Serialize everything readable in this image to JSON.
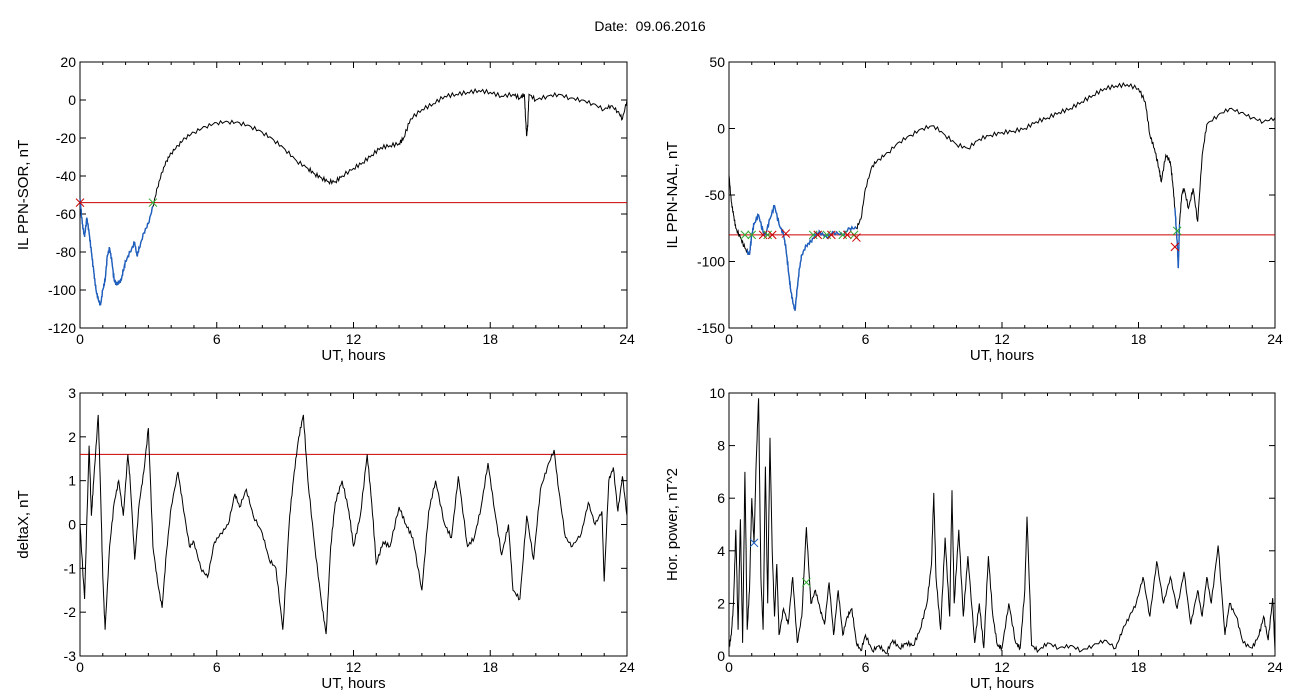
{
  "title": "Date:  09.06.2016",
  "chart_data": [
    {
      "id": "tl",
      "type": "line",
      "title": "",
      "xlabel": "UT, hours",
      "ylabel": "IL PPN-SOR, nT",
      "xlim": [
        0,
        24
      ],
      "ylim": [
        -120,
        20
      ],
      "xticks": [
        0,
        6,
        12,
        18,
        24
      ],
      "yticks": [
        -120,
        -100,
        -80,
        -60,
        -40,
        -20,
        0,
        20
      ],
      "threshold": -54,
      "threshold_color": "#cc0000",
      "line_color": "#000000",
      "highlight_color": "#1f5fbf",
      "highlight_range": [
        0,
        3.2
      ],
      "markers": [
        {
          "x": 0.0,
          "y": -54,
          "symbol": "x",
          "color": "#cc0000"
        },
        {
          "x": 3.2,
          "y": -54,
          "symbol": "x",
          "color": "#33aa33"
        }
      ],
      "series": [
        {
          "x": [
            0,
            0.1,
            0.2,
            0.3,
            0.4,
            0.5,
            0.6,
            0.7,
            0.8,
            0.9,
            1.0,
            1.1,
            1.2,
            1.3,
            1.4,
            1.5,
            1.6,
            1.7,
            1.8,
            1.9,
            2.0,
            2.2,
            2.4,
            2.5,
            2.6,
            2.8,
            3.0,
            3.2,
            3.4,
            3.6,
            3.8,
            4.0,
            4.3,
            4.6,
            5.0,
            5.5,
            6.0,
            6.5,
            7.0,
            7.5,
            8.0,
            8.5,
            9.0,
            9.5,
            10.0,
            10.3,
            10.6,
            10.9,
            11.2,
            11.5,
            12.0,
            12.4,
            12.8,
            13.2,
            13.6,
            14.0,
            14.2,
            14.5,
            15.0,
            15.5,
            16.0,
            16.5,
            17.0,
            17.5,
            18.0,
            18.5,
            19.0,
            19.3,
            19.5,
            19.55,
            19.6,
            19.65,
            19.7,
            20.0,
            20.5,
            21.0,
            21.5,
            22.0,
            22.5,
            23.0,
            23.3,
            23.6,
            23.8,
            24.0
          ],
          "y": [
            -52,
            -65,
            -72,
            -62,
            -70,
            -80,
            -90,
            -100,
            -105,
            -108,
            -100,
            -95,
            -82,
            -78,
            -85,
            -95,
            -97,
            -96,
            -95,
            -90,
            -85,
            -80,
            -75,
            -82,
            -78,
            -70,
            -65,
            -56,
            -46,
            -38,
            -32,
            -28,
            -24,
            -20,
            -17,
            -14,
            -12,
            -11.5,
            -12,
            -14,
            -17,
            -21,
            -26,
            -32,
            -36,
            -39,
            -41,
            -43,
            -43,
            -40,
            -36,
            -33,
            -29,
            -25,
            -24,
            -23,
            -20,
            -10,
            -5,
            -2,
            2,
            3,
            4,
            5,
            4,
            2,
            3,
            1,
            3,
            -10,
            -19,
            -12,
            3,
            0,
            2,
            3,
            1,
            0,
            -2,
            -5,
            -3,
            -6,
            -10,
            0
          ]
        }
      ]
    },
    {
      "id": "tr",
      "type": "line",
      "title": "",
      "xlabel": "UT, hours",
      "ylabel": "IL PPN-NAL, nT",
      "xlim": [
        0,
        24
      ],
      "ylim": [
        -150,
        50
      ],
      "xticks": [
        0,
        6,
        12,
        18,
        24
      ],
      "yticks": [
        -150,
        -100,
        -50,
        0,
        50
      ],
      "threshold": -80,
      "threshold_color": "#cc0000",
      "line_color": "#000000",
      "highlight_color": "#1f5fbf",
      "highlight_range": [
        0.8,
        5.6
      ],
      "highlight_range2": [
        19.6,
        19.8
      ],
      "markers": [
        {
          "x": 0.7,
          "y": -80,
          "symbol": "x",
          "color": "#33aa33"
        },
        {
          "x": 1.0,
          "y": -80,
          "symbol": "x",
          "color": "#33aa33"
        },
        {
          "x": 1.5,
          "y": -80,
          "symbol": "x",
          "color": "#cc0000"
        },
        {
          "x": 1.7,
          "y": -80,
          "symbol": "x",
          "color": "#33aa33"
        },
        {
          "x": 1.9,
          "y": -80,
          "symbol": "x",
          "color": "#cc0000"
        },
        {
          "x": 2.5,
          "y": -79,
          "symbol": "x",
          "color": "#cc0000"
        },
        {
          "x": 3.7,
          "y": -80,
          "symbol": "x",
          "color": "#33aa33"
        },
        {
          "x": 3.9,
          "y": -80,
          "symbol": "x",
          "color": "#cc0000"
        },
        {
          "x": 4.3,
          "y": -80,
          "symbol": "x",
          "color": "#33aa33"
        },
        {
          "x": 4.5,
          "y": -80,
          "symbol": "x",
          "color": "#cc0000"
        },
        {
          "x": 5.0,
          "y": -80,
          "symbol": "x",
          "color": "#33aa33"
        },
        {
          "x": 5.2,
          "y": -80,
          "symbol": "x",
          "color": "#cc0000"
        },
        {
          "x": 5.5,
          "y": -80,
          "symbol": "x",
          "color": "#33aa33"
        },
        {
          "x": 5.6,
          "y": -82,
          "symbol": "x",
          "color": "#cc0000"
        },
        {
          "x": 19.6,
          "y": -89,
          "symbol": "x",
          "color": "#cc0000"
        },
        {
          "x": 19.7,
          "y": -77,
          "symbol": "x",
          "color": "#33aa33"
        }
      ],
      "series": [
        {
          "x": [
            0,
            0.1,
            0.2,
            0.3,
            0.5,
            0.7,
            0.9,
            1.0,
            1.1,
            1.3,
            1.5,
            1.6,
            1.8,
            2.0,
            2.2,
            2.4,
            2.5,
            2.6,
            2.7,
            2.8,
            2.9,
            3.0,
            3.1,
            3.2,
            3.4,
            3.6,
            3.8,
            4.0,
            4.3,
            4.6,
            5.0,
            5.3,
            5.6,
            5.8,
            6.0,
            6.3,
            6.6,
            7.0,
            7.5,
            8.0,
            8.5,
            9.0,
            9.5,
            10.0,
            10.5,
            11.0,
            11.5,
            12.0,
            12.5,
            13.0,
            13.5,
            14.0,
            14.5,
            15.0,
            15.5,
            16.0,
            16.5,
            17.0,
            17.5,
            18.0,
            18.3,
            18.5,
            18.7,
            18.9,
            19.0,
            19.2,
            19.4,
            19.5,
            19.6,
            19.7,
            19.75,
            19.8,
            19.9,
            20.0,
            20.2,
            20.4,
            20.6,
            20.8,
            21.0,
            21.5,
            22.0,
            22.5,
            23.0,
            23.5,
            24.0
          ],
          "y": [
            -35,
            -55,
            -65,
            -75,
            -82,
            -90,
            -95,
            -80,
            -72,
            -65,
            -78,
            -80,
            -68,
            -58,
            -72,
            -80,
            -90,
            -105,
            -120,
            -130,
            -137,
            -120,
            -105,
            -95,
            -88,
            -85,
            -80,
            -78,
            -82,
            -78,
            -80,
            -75,
            -75,
            -68,
            -45,
            -28,
            -23,
            -18,
            -10,
            -5,
            0,
            2,
            -5,
            -12,
            -15,
            -8,
            -5,
            -3,
            -2,
            0,
            5,
            8,
            12,
            15,
            20,
            25,
            30,
            32,
            33,
            30,
            20,
            -5,
            -15,
            -30,
            -40,
            -20,
            -25,
            -40,
            -60,
            -85,
            -105,
            -72,
            -50,
            -45,
            -60,
            -45,
            -70,
            -20,
            3,
            10,
            15,
            12,
            8,
            5,
            8
          ]
        }
      ]
    },
    {
      "id": "bl",
      "type": "line",
      "title": "",
      "xlabel": "UT, hours",
      "ylabel": "deltaX, nT",
      "xlim": [
        0,
        24
      ],
      "ylim": [
        -3,
        3
      ],
      "xticks": [
        0,
        6,
        12,
        18,
        24
      ],
      "yticks": [
        -3,
        -2,
        -1,
        0,
        1,
        2,
        3
      ],
      "threshold": 1.6,
      "threshold_color": "#cc0000",
      "line_color": "#000000",
      "markers": [],
      "series": [
        {
          "x": [
            0,
            0.2,
            0.4,
            0.5,
            0.6,
            0.8,
            0.9,
            1.0,
            1.1,
            1.3,
            1.5,
            1.7,
            1.9,
            2.1,
            2.2,
            2.4,
            2.6,
            2.8,
            3.0,
            3.2,
            3.4,
            3.6,
            3.8,
            4.0,
            4.3,
            4.5,
            4.8,
            5.0,
            5.3,
            5.6,
            5.9,
            6.2,
            6.5,
            6.8,
            7.0,
            7.3,
            7.6,
            8.0,
            8.3,
            8.6,
            8.9,
            9.2,
            9.4,
            9.6,
            9.8,
            10.0,
            10.3,
            10.6,
            10.8,
            11.0,
            11.2,
            11.5,
            11.8,
            12.0,
            12.3,
            12.6,
            12.8,
            13.0,
            13.3,
            13.6,
            14.0,
            14.3,
            14.6,
            15.0,
            15.3,
            15.6,
            16.0,
            16.3,
            16.6,
            17.0,
            17.3,
            17.6,
            17.9,
            18.2,
            18.5,
            18.8,
            19.0,
            19.3,
            19.6,
            19.9,
            20.2,
            20.5,
            20.8,
            21.0,
            21.3,
            21.6,
            22.0,
            22.3,
            22.6,
            22.9,
            23.0,
            23.2,
            23.4,
            23.6,
            23.8,
            24.0
          ],
          "y": [
            0,
            -1.7,
            1.8,
            0.2,
            1.0,
            2.5,
            0.8,
            -1.2,
            -2.4,
            -0.5,
            0.5,
            1.0,
            0.2,
            1.6,
            1.0,
            -0.8,
            0.5,
            1.2,
            2.2,
            -0.5,
            -1.3,
            -1.9,
            -0.6,
            0.4,
            1.2,
            0.5,
            -0.5,
            -0.4,
            -1.0,
            -1.2,
            -0.4,
            -0.2,
            0.0,
            0.7,
            0.4,
            0.8,
            0.2,
            -0.2,
            -0.8,
            -1.0,
            -2.4,
            0.2,
            1.2,
            2.0,
            2.5,
            1.0,
            -0.5,
            -1.8,
            -2.5,
            -0.5,
            0.5,
            1.0,
            0.3,
            -0.5,
            0.2,
            1.6,
            0.5,
            -0.9,
            -0.4,
            -0.5,
            0.4,
            0.0,
            -0.3,
            -1.5,
            0.3,
            1.0,
            0.0,
            -0.3,
            1.1,
            -0.5,
            -0.3,
            0.4,
            1.4,
            0.3,
            -0.7,
            0.0,
            -1.5,
            -1.7,
            0.2,
            -0.8,
            0.8,
            1.3,
            1.7,
            0.8,
            -0.3,
            -0.5,
            -0.2,
            0.5,
            0.0,
            0.3,
            -1.3,
            1.0,
            1.3,
            0.3,
            1.1,
            0.2
          ]
        }
      ]
    },
    {
      "id": "br",
      "type": "line",
      "title": "",
      "xlabel": "UT, hours",
      "ylabel": "Hor. power, nT^2",
      "xlim": [
        0,
        24
      ],
      "ylim": [
        0,
        10
      ],
      "xticks": [
        0,
        6,
        12,
        18,
        24
      ],
      "yticks": [
        0,
        2,
        4,
        6,
        8,
        10
      ],
      "line_color": "#000000",
      "markers": [
        {
          "x": 1.1,
          "y": 4.3,
          "symbol": "x",
          "color": "#1f5fbf"
        },
        {
          "x": 3.4,
          "y": 2.8,
          "symbol": "x",
          "color": "#33aa33"
        }
      ],
      "series": [
        {
          "x": [
            0,
            0.1,
            0.2,
            0.3,
            0.4,
            0.5,
            0.6,
            0.7,
            0.8,
            0.9,
            1.0,
            1.1,
            1.2,
            1.3,
            1.4,
            1.5,
            1.6,
            1.7,
            1.8,
            1.9,
            2.0,
            2.1,
            2.2,
            2.4,
            2.6,
            2.8,
            3.0,
            3.2,
            3.4,
            3.6,
            3.8,
            4.0,
            4.2,
            4.4,
            4.6,
            4.8,
            5.0,
            5.2,
            5.4,
            5.6,
            5.8,
            6.0,
            6.3,
            6.6,
            6.9,
            7.2,
            7.5,
            7.8,
            8.1,
            8.4,
            8.7,
            8.9,
            9.0,
            9.1,
            9.3,
            9.5,
            9.7,
            9.8,
            9.9,
            10.1,
            10.3,
            10.5,
            10.8,
            11.0,
            11.2,
            11.4,
            11.6,
            11.8,
            12.0,
            12.3,
            12.6,
            12.8,
            13.0,
            13.1,
            13.3,
            13.6,
            14.0,
            14.5,
            15.0,
            15.5,
            16.0,
            16.5,
            17.0,
            17.3,
            17.6,
            17.9,
            18.2,
            18.5,
            18.8,
            19.1,
            19.4,
            19.7,
            20.0,
            20.3,
            20.6,
            20.8,
            21.0,
            21.2,
            21.5,
            21.8,
            22.0,
            22.3,
            22.6,
            23.0,
            23.3,
            23.5,
            23.7,
            23.9,
            24.0
          ],
          "y": [
            0.3,
            0.8,
            2.0,
            4.8,
            1.0,
            5.2,
            0.5,
            7.0,
            1.0,
            2.5,
            6.0,
            4.3,
            7.5,
            9.8,
            3.0,
            1.0,
            7.2,
            2.0,
            8.3,
            4.0,
            1.5,
            3.5,
            0.8,
            1.8,
            1.2,
            3.0,
            0.5,
            1.5,
            4.9,
            2.0,
            2.5,
            1.8,
            1.2,
            2.8,
            0.8,
            2.5,
            0.8,
            1.5,
            1.8,
            0.5,
            0.2,
            0.8,
            0.2,
            0.4,
            0.1,
            0.6,
            0.3,
            0.5,
            0.4,
            1.0,
            2.0,
            3.5,
            6.2,
            3.0,
            1.0,
            4.5,
            1.5,
            6.3,
            2.0,
            4.8,
            1.5,
            3.8,
            0.5,
            2.0,
            0.3,
            3.8,
            1.5,
            0.4,
            0.3,
            2.0,
            0.5,
            0.3,
            2.5,
            5.3,
            0.4,
            0.2,
            0.5,
            0.3,
            0.4,
            0.2,
            0.4,
            0.6,
            0.3,
            1.0,
            1.5,
            2.0,
            3.0,
            1.5,
            3.6,
            2.0,
            3.0,
            1.8,
            3.2,
            1.2,
            2.5,
            1.5,
            3.0,
            2.0,
            4.2,
            0.8,
            2.0,
            1.5,
            0.5,
            0.3,
            0.8,
            1.5,
            0.6,
            2.2,
            0.2
          ]
        }
      ]
    }
  ]
}
